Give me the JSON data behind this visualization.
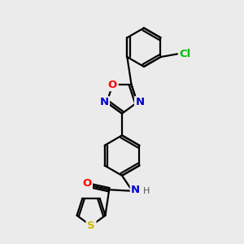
{
  "bg_color": "#ebebeb",
  "bond_color": "#000000",
  "bond_width": 1.6,
  "atom_colors": {
    "O": "#ff0000",
    "N": "#0000cc",
    "S": "#ccbb00",
    "Cl": "#00bb00",
    "C": "#000000",
    "H": "#555555"
  },
  "font_size": 9.5
}
